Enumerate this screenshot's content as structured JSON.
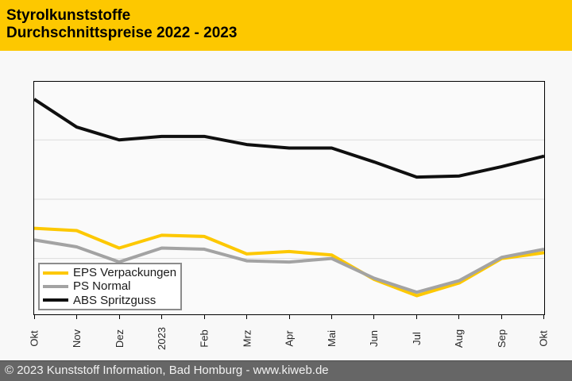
{
  "header": {
    "title": "Styrolkunststoffe",
    "subtitle": "Durchschnittspreise 2022 - 2023"
  },
  "footer": {
    "text": "© 2023 Kunststoff Information, Bad Homburg - www.kiweb.de"
  },
  "colors": {
    "brand_yellow": "#FDC800",
    "page_bg": "#F8F8F8",
    "plot_bg": "#FAFAFA",
    "grid": "#DCDCDC",
    "frame_border": "#000000",
    "legend_border": "#8C8C8C",
    "footer_bg": "#666666",
    "footer_text": "#F2F2F2",
    "eps_line": "#FDC800",
    "ps_line": "#A3A3A3",
    "abs_line": "#0F0F0F"
  },
  "chart_data": {
    "type": "line",
    "title": "Styrolkunststoffe Durchschnittspreise 2022 - 2023",
    "xlabel": "",
    "ylabel": "",
    "x_axis_note": "Okt 2022 - Okt 2023, January tick labeled 2023",
    "categories": [
      "Okt",
      "Nov",
      "Dez",
      "2023",
      "Feb",
      "Mrz",
      "Apr",
      "Mai",
      "Jun",
      "Jul",
      "Aug",
      "Sep",
      "Okt"
    ],
    "series": [
      {
        "name": "EPS Verpackungen",
        "color": "#FDC800",
        "values": [
          37,
          36,
          28.5,
          34,
          33.5,
          26,
          27,
          25.5,
          15,
          8,
          13.5,
          24,
          26.5
        ]
      },
      {
        "name": "PS Normal",
        "color": "#A3A3A3",
        "values": [
          32,
          29,
          22.5,
          28.5,
          28,
          23,
          22.5,
          24,
          15.5,
          9.5,
          14.5,
          24.5,
          28
        ]
      },
      {
        "name": "ABS Spritzguss",
        "color": "#0F0F0F",
        "values": [
          92.5,
          80.5,
          75,
          76.5,
          76.5,
          73,
          71.5,
          71.5,
          65.5,
          59,
          59.5,
          63.5,
          68
        ]
      }
    ],
    "ylim": [
      0,
      100
    ],
    "y_axis_labels_visible": false,
    "gridlines_y": [
      24,
      49.5,
      75
    ],
    "grid": true,
    "legend_position": "bottom-left"
  }
}
